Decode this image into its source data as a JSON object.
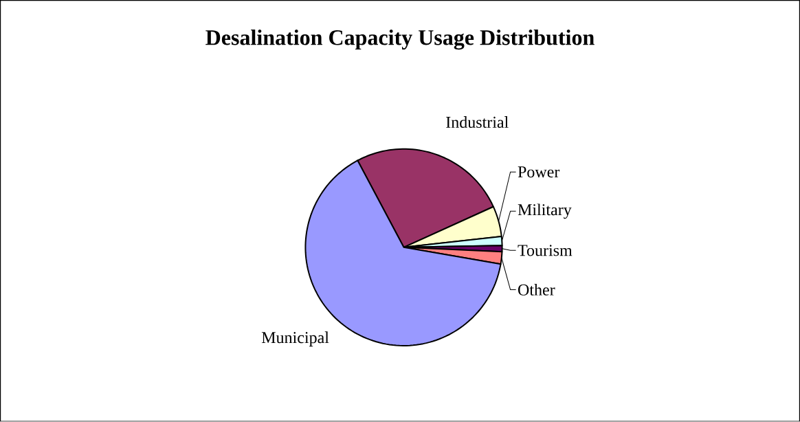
{
  "chart_data": {
    "type": "pie",
    "title": "Desalination Capacity Usage Distribution",
    "categories": [
      "Industrial",
      "Power",
      "Military",
      "Tourism",
      "Other",
      "Municipal"
    ],
    "values": [
      26,
      5,
      1.5,
      1,
      2,
      64.5
    ],
    "colors": [
      "#993366",
      "#ffffcc",
      "#ccffff",
      "#660066",
      "#ff8080",
      "#9999ff"
    ]
  }
}
